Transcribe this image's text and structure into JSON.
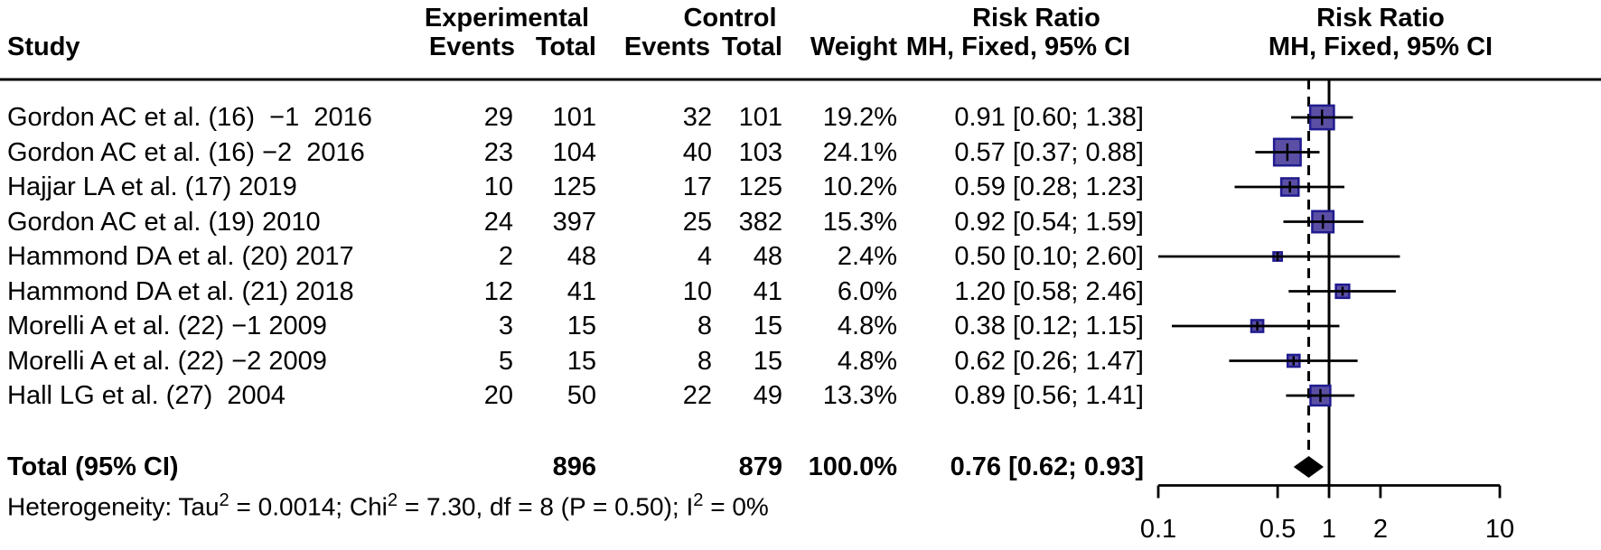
{
  "header": {
    "study": "Study",
    "group_experimental": "Experimental",
    "group_control": "Control",
    "events": "Events",
    "total": "Total",
    "weight": "Weight",
    "risk_ratio": "Risk Ratio",
    "method": "MH, Fixed, 95% CI"
  },
  "footer": {
    "heterogeneity": "Heterogeneity: Tau² = 0.0014; Chi² = 7.30, df = 8 (P = 0.50); I² = 0%"
  },
  "chart_data": {
    "type": "forest",
    "x_scale": "log10",
    "axis_range": [
      0.1,
      10
    ],
    "axis_ticks": [
      0.1,
      0.5,
      1,
      2,
      10
    ],
    "axis_tick_labels": [
      "0.1",
      "0.5",
      "1",
      "2",
      "10"
    ],
    "reference_line": 1.0,
    "pooled_dashed_line": 0.76,
    "colors": {
      "marker_fill": "#5b4fa5",
      "marker_stroke": "#201b8f",
      "line": "#000000",
      "diamond": "#000000"
    },
    "studies": [
      {
        "name": "Gordon AC et al. (16)  −1  2016",
        "events_exp": "29",
        "total_exp": "101",
        "events_ctl": "32",
        "total_ctl": "101",
        "weight": "19.2%",
        "weight_pct": 19.2,
        "rr_label": "0.91 [0.60; 1.38]",
        "rr": 0.91,
        "ci_low": 0.6,
        "ci_high": 1.38
      },
      {
        "name": "Gordon AC et al. (16) −2  2016",
        "events_exp": "23",
        "total_exp": "104",
        "events_ctl": "40",
        "total_ctl": "103",
        "weight": "24.1%",
        "weight_pct": 24.1,
        "rr_label": "0.57 [0.37; 0.88]",
        "rr": 0.57,
        "ci_low": 0.37,
        "ci_high": 0.88
      },
      {
        "name": "Hajjar LA et al. (17) 2019",
        "events_exp": "10",
        "total_exp": "125",
        "events_ctl": "17",
        "total_ctl": "125",
        "weight": "10.2%",
        "weight_pct": 10.2,
        "rr_label": "0.59 [0.28; 1.23]",
        "rr": 0.59,
        "ci_low": 0.28,
        "ci_high": 1.23
      },
      {
        "name": "Gordon AC et al. (19) 2010",
        "events_exp": "24",
        "total_exp": "397",
        "events_ctl": "25",
        "total_ctl": "382",
        "weight": "15.3%",
        "weight_pct": 15.3,
        "rr_label": "0.92 [0.54; 1.59]",
        "rr": 0.92,
        "ci_low": 0.54,
        "ci_high": 1.59
      },
      {
        "name": "Hammond DA et al. (20) 2017",
        "events_exp": "2",
        "total_exp": "48",
        "events_ctl": "4",
        "total_ctl": "48",
        "weight": "2.4%",
        "weight_pct": 2.4,
        "rr_label": "0.50 [0.10; 2.60]",
        "rr": 0.5,
        "ci_low": 0.1,
        "ci_high": 2.6
      },
      {
        "name": "Hammond DA et al. (21) 2018",
        "events_exp": "12",
        "total_exp": "41",
        "events_ctl": "10",
        "total_ctl": "41",
        "weight": "6.0%",
        "weight_pct": 6.0,
        "rr_label": "1.20 [0.58; 2.46]",
        "rr": 1.2,
        "ci_low": 0.58,
        "ci_high": 2.46
      },
      {
        "name": "Morelli A et al. (22) −1 2009",
        "events_exp": "3",
        "total_exp": "15",
        "events_ctl": "8",
        "total_ctl": "15",
        "weight": "4.8%",
        "weight_pct": 4.8,
        "rr_label": "0.38 [0.12; 1.15]",
        "rr": 0.38,
        "ci_low": 0.12,
        "ci_high": 1.15
      },
      {
        "name": "Morelli A et al. (22) −2 2009",
        "events_exp": "5",
        "total_exp": "15",
        "events_ctl": "8",
        "total_ctl": "15",
        "weight": "4.8%",
        "weight_pct": 4.8,
        "rr_label": "0.62 [0.26; 1.47]",
        "rr": 0.62,
        "ci_low": 0.26,
        "ci_high": 1.47
      },
      {
        "name": "Hall LG et al. (27)  2004",
        "events_exp": "20",
        "total_exp": "50",
        "events_ctl": "22",
        "total_ctl": "49",
        "weight": "13.3%",
        "weight_pct": 13.3,
        "rr_label": "0.89 [0.56; 1.41]",
        "rr": 0.89,
        "ci_low": 0.56,
        "ci_high": 1.41
      }
    ],
    "total": {
      "label": "Total (95% CI)",
      "total_exp": "896",
      "total_ctl": "879",
      "weight": "100.0%",
      "rr_label": "0.76 [0.62; 0.93]",
      "rr": 0.76,
      "ci_low": 0.62,
      "ci_high": 0.93
    }
  }
}
